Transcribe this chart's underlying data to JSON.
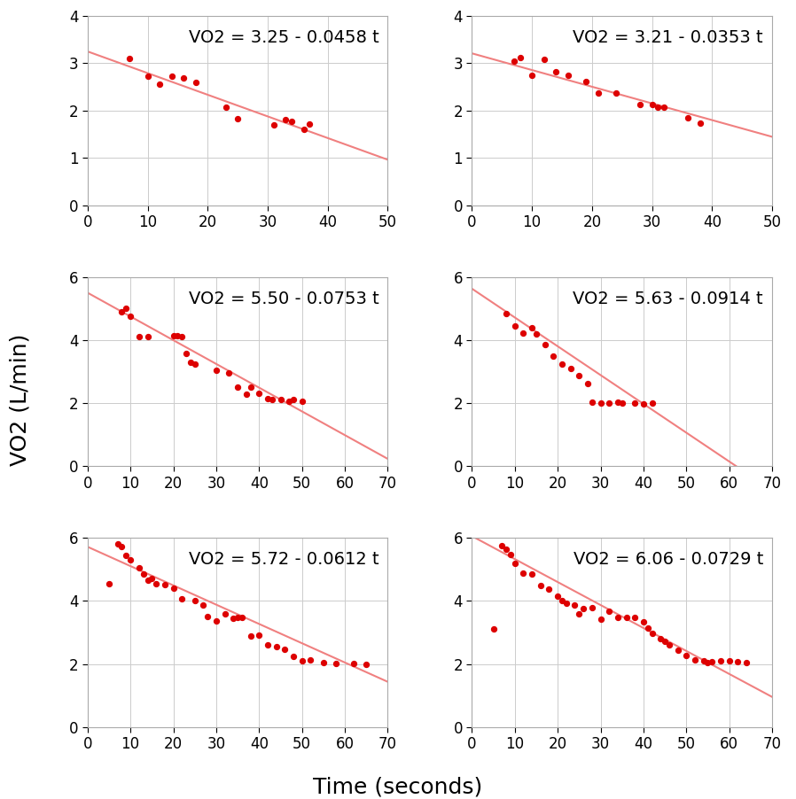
{
  "subplots": [
    {
      "intercept": 3.25,
      "slope": -0.0458,
      "equation": "VO2 = 3.25 - 0.0458 t",
      "xlim": [
        0,
        50
      ],
      "ylim": [
        0,
        4
      ],
      "yticks": [
        0,
        1,
        2,
        3,
        4
      ],
      "xticks": [
        0,
        10,
        20,
        30,
        40,
        50
      ],
      "points_x": [
        7,
        10,
        12,
        14,
        16,
        18,
        23,
        25,
        31,
        33,
        34,
        36,
        37
      ],
      "points_y": [
        3.1,
        2.73,
        2.55,
        2.72,
        2.68,
        2.6,
        2.07,
        1.83,
        1.7,
        1.8,
        1.78,
        1.6,
        1.72
      ]
    },
    {
      "intercept": 3.21,
      "slope": -0.0353,
      "equation": "VO2 = 3.21 - 0.0353 t",
      "xlim": [
        0,
        50
      ],
      "ylim": [
        0,
        4
      ],
      "yticks": [
        0,
        1,
        2,
        3,
        4
      ],
      "xticks": [
        0,
        10,
        20,
        30,
        40,
        50
      ],
      "points_x": [
        7,
        8,
        10,
        12,
        14,
        16,
        19,
        21,
        24,
        28,
        30,
        31,
        32,
        36,
        38
      ],
      "points_y": [
        3.05,
        3.12,
        2.75,
        3.08,
        2.82,
        2.75,
        2.62,
        2.38,
        2.38,
        2.12,
        2.12,
        2.07,
        2.07,
        1.85,
        1.73
      ]
    },
    {
      "intercept": 5.5,
      "slope": -0.0753,
      "equation": "VO2 = 5.50 - 0.0753 t",
      "xlim": [
        0,
        70
      ],
      "ylim": [
        0,
        6
      ],
      "yticks": [
        0,
        2,
        4,
        6
      ],
      "xticks": [
        0,
        10,
        20,
        30,
        40,
        50,
        60,
        70
      ],
      "points_x": [
        8,
        9,
        10,
        12,
        14,
        20,
        21,
        22,
        23,
        24,
        25,
        30,
        33,
        35,
        37,
        38,
        40,
        42,
        43,
        45,
        47,
        48,
        50
      ],
      "points_y": [
        4.9,
        5.0,
        4.75,
        4.1,
        4.1,
        4.13,
        4.15,
        4.12,
        3.58,
        3.3,
        3.25,
        3.05,
        2.95,
        2.5,
        2.28,
        2.52,
        2.3,
        2.15,
        2.12,
        2.12,
        2.05,
        2.1,
        2.07
      ]
    },
    {
      "intercept": 5.63,
      "slope": -0.0914,
      "equation": "VO2 = 5.63 - 0.0914 t",
      "xlim": [
        0,
        70
      ],
      "ylim": [
        0,
        6
      ],
      "yticks": [
        0,
        2,
        4,
        6
      ],
      "xticks": [
        0,
        10,
        20,
        30,
        40,
        50,
        60,
        70
      ],
      "points_x": [
        8,
        10,
        12,
        14,
        15,
        17,
        19,
        21,
        23,
        25,
        27,
        28,
        30,
        32,
        34,
        35,
        38,
        40,
        42
      ],
      "points_y": [
        4.85,
        4.45,
        4.22,
        4.38,
        4.2,
        3.85,
        3.5,
        3.25,
        3.1,
        2.88,
        2.62,
        2.02,
        2.0,
        2.0,
        2.02,
        2.0,
        2.0,
        1.98,
        2.0
      ]
    },
    {
      "intercept": 5.72,
      "slope": -0.0612,
      "equation": "VO2 = 5.72 - 0.0612 t",
      "xlim": [
        0,
        70
      ],
      "ylim": [
        0,
        6
      ],
      "yticks": [
        0,
        2,
        4,
        6
      ],
      "xticks": [
        0,
        10,
        20,
        30,
        40,
        50,
        60,
        70
      ],
      "points_x": [
        5,
        7,
        8,
        9,
        10,
        12,
        13,
        14,
        15,
        16,
        18,
        20,
        22,
        25,
        27,
        28,
        30,
        32,
        34,
        35,
        36,
        38,
        40,
        42,
        44,
        46,
        48,
        50,
        52,
        55,
        58,
        62,
        65
      ],
      "points_y": [
        4.55,
        5.82,
        5.73,
        5.45,
        5.3,
        5.05,
        4.85,
        4.65,
        4.72,
        4.55,
        4.52,
        4.4,
        4.08,
        4.0,
        3.88,
        3.5,
        3.38,
        3.58,
        3.45,
        3.48,
        3.48,
        2.88,
        2.92,
        2.6,
        2.55,
        2.48,
        2.25,
        2.1,
        2.12,
        2.05,
        2.02,
        2.02,
        2.0
      ]
    },
    {
      "intercept": 6.06,
      "slope": -0.0729,
      "equation": "VO2 = 6.06 - 0.0729 t",
      "xlim": [
        0,
        70
      ],
      "ylim": [
        0,
        6
      ],
      "yticks": [
        0,
        2,
        4,
        6
      ],
      "xticks": [
        0,
        10,
        20,
        30,
        40,
        50,
        60,
        70
      ],
      "points_x": [
        5,
        7,
        8,
        9,
        10,
        12,
        14,
        16,
        18,
        20,
        21,
        22,
        24,
        25,
        26,
        28,
        30,
        32,
        34,
        36,
        38,
        40,
        41,
        42,
        44,
        45,
        46,
        48,
        50,
        52,
        54,
        55,
        56,
        58,
        60,
        62,
        64
      ],
      "points_y": [
        3.12,
        5.75,
        5.65,
        5.48,
        5.18,
        4.88,
        4.85,
        4.48,
        4.38,
        4.15,
        4.0,
        3.92,
        3.88,
        3.6,
        3.75,
        3.8,
        3.42,
        3.68,
        3.48,
        3.48,
        3.48,
        3.35,
        3.15,
        2.98,
        2.8,
        2.72,
        2.62,
        2.45,
        2.28,
        2.12,
        2.1,
        2.05,
        2.08,
        2.1,
        2.1,
        2.08,
        2.05
      ]
    }
  ],
  "dot_color": "#dd0000",
  "line_color": "#f08080",
  "grid_color": "#cccccc",
  "bg_color": "#ffffff",
  "fig_bg_color": "#ffffff",
  "ylabel": "VO2 (L/min)",
  "xlabel": "Time (seconds)",
  "annotation_fontsize": 14,
  "label_fontsize": 18,
  "tick_fontsize": 12
}
